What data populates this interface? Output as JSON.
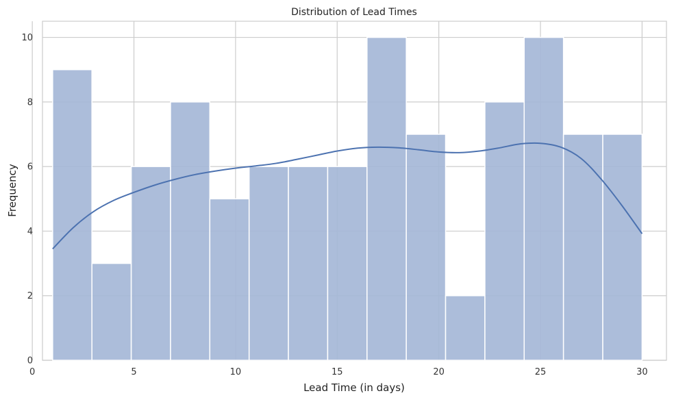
{
  "chart_data": {
    "type": "bar",
    "title": "Distribution of Lead Times",
    "xlabel": "Lead Time (in days)",
    "ylabel": "Frequency",
    "xlim": [
      0.5,
      31.2
    ],
    "ylim": [
      0,
      10.5
    ],
    "xticks": [
      0,
      5,
      10,
      15,
      20,
      25,
      30
    ],
    "yticks": [
      0,
      2,
      4,
      6,
      8,
      10
    ],
    "grid": true,
    "bar_color": "#a5b7d7",
    "kde_color": "#4c72b0",
    "grid_color": "#cccccc",
    "bins": {
      "edges": [
        1,
        2.933,
        4.867,
        6.8,
        8.733,
        10.667,
        12.6,
        14.533,
        16.467,
        18.4,
        20.333,
        22.267,
        24.2,
        26.133,
        28.067,
        30
      ],
      "counts": [
        9,
        3,
        6,
        8,
        5,
        6,
        6,
        6,
        10,
        7,
        2,
        8,
        10,
        7,
        7
      ]
    },
    "kde": {
      "x": [
        1,
        2,
        3,
        4,
        5,
        6,
        7,
        8,
        9,
        10,
        11,
        12,
        13,
        14,
        15,
        16,
        17,
        18,
        19,
        20,
        21,
        22,
        23,
        24,
        25,
        26,
        27,
        28,
        29,
        30
      ],
      "y": [
        3.45,
        4.1,
        4.6,
        4.95,
        5.2,
        5.42,
        5.6,
        5.75,
        5.86,
        5.95,
        6.02,
        6.1,
        6.22,
        6.35,
        6.48,
        6.57,
        6.6,
        6.58,
        6.52,
        6.45,
        6.43,
        6.48,
        6.58,
        6.7,
        6.72,
        6.6,
        6.25,
        5.6,
        4.8,
        3.92
      ]
    }
  }
}
